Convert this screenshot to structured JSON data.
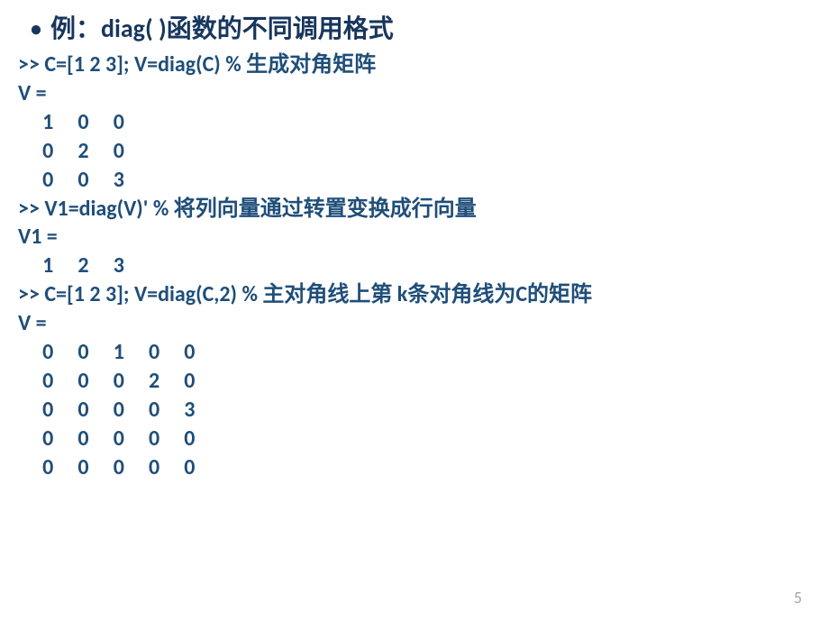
{
  "title": {
    "bullet": "•",
    "text": "例：diag( )函数的不同调用格式"
  },
  "block1": {
    "cmd": ">> C=[1 2 3]; V=diag(C)   % 生成对角矩阵",
    "result_label": "V =",
    "rows": [
      "     1     0     0",
      "     0     2     0",
      "     0     0     3"
    ]
  },
  "block2": {
    "cmd": ">> V1=diag(V)'   % 将列向量通过转置变换成行向量",
    "result_label": "V1 =",
    "rows": [
      "     1     2     3"
    ]
  },
  "block3": {
    "cmd": ">> C=[1 2 3]; V=diag(C,2)  % 主对角线上第  k条对角线为C的矩阵",
    "result_label": "V =",
    "rows": [
      "     0     0     1     0     0",
      "     0     0     0     2     0",
      "     0     0     0     0     3",
      "     0     0     0     0     0",
      "     0     0     0     0     0"
    ]
  },
  "page_number": "5",
  "colors": {
    "title_color": "#17365d",
    "code_color": "#1f4e79",
    "page_num_color": "#a6a6a6",
    "background": "#ffffff"
  },
  "fonts": {
    "title_size_pt": 21,
    "code_size_pt": 18,
    "page_num_size_pt": 14
  }
}
